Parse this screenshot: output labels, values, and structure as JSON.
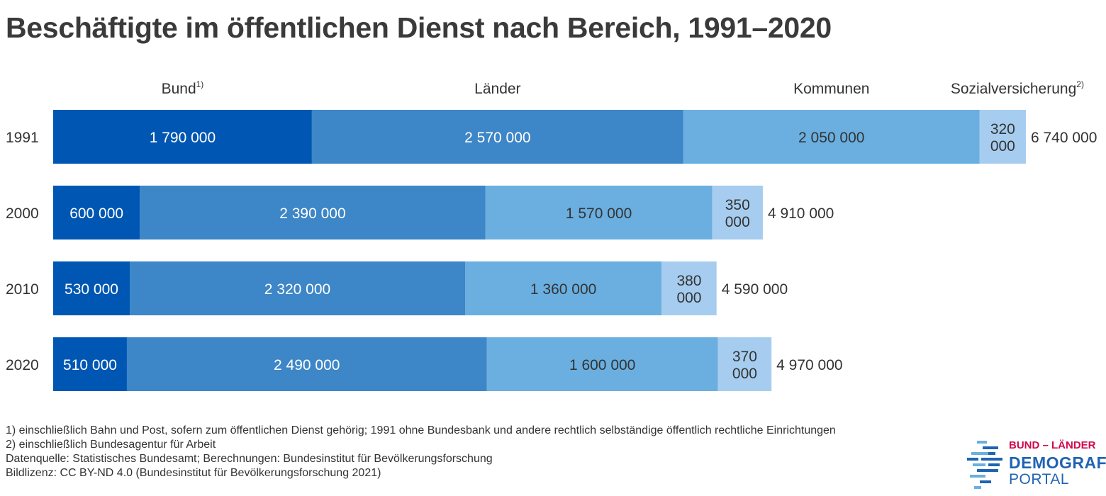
{
  "title": "Beschäftigte im öffentlichen Dienst nach Bereich, 1991–2020",
  "chart_data": {
    "type": "bar",
    "orientation": "horizontal",
    "stacked": true,
    "categories": [
      "1991",
      "2000",
      "2010",
      "2020"
    ],
    "series": [
      {
        "name": "Bund",
        "note": "1)",
        "color": "#0057b3",
        "values": [
          1790000,
          600000,
          530000,
          510000
        ],
        "labels": [
          "1 790 000",
          "600 000",
          "530 000",
          "510 000"
        ],
        "text_color": "#ffffff"
      },
      {
        "name": "Länder",
        "color": "#3d86c7",
        "values": [
          2570000,
          2390000,
          2320000,
          2490000
        ],
        "labels": [
          "2 570 000",
          "2 390 000",
          "2 320 000",
          "2 490 000"
        ],
        "text_color": "#ffffff"
      },
      {
        "name": "Kommunen",
        "color": "#6aafe0",
        "values": [
          2050000,
          1570000,
          1360000,
          1600000
        ],
        "labels": [
          "2 050 000",
          "1 570 000",
          "1 360 000",
          "1 600 000"
        ],
        "text_color": "#333333"
      },
      {
        "name": "Sozialversicherung",
        "note": "2)",
        "color": "#a6cdef",
        "values": [
          320000,
          350000,
          380000,
          370000
        ],
        "labels": [
          "320\n000",
          "350\n000",
          "380\n000",
          "370\n000"
        ],
        "text_color": "#333333"
      }
    ],
    "totals": [
      "6 740 000",
      "4 910 000",
      "4 590 000",
      "4 970 000"
    ],
    "legend_position": "top"
  },
  "footnotes": [
    "1) einschließlich Bahn und Post, sofern zum öffentlichen Dienst gehörig; 1991 ohne Bundesbank und andere rechtlich selbständige öffentlich rechtliche Einrichtungen",
    "2) einschließlich Bundesagentur für Arbeit",
    "Datenquelle: Statistisches Bundesamt; Berechnungen: Bundesinstitut für Bevölkerungsforschung",
    "Bildlizenz: CC BY-ND 4.0 (Bundesinstitut für Bevölkerungsforschung 2021)"
  ],
  "logo": {
    "line1": "BUND – LÄNDER",
    "line2": "DEMOGRAFIE",
    "line3": "PORTAL",
    "colors": {
      "accent": "#d0094f",
      "primary": "#1f63b3",
      "light": "#6aafe0"
    }
  }
}
